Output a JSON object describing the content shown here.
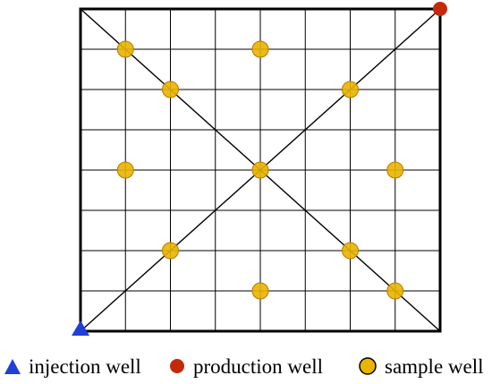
{
  "diagram": {
    "grid_columns": 8,
    "grid_rows": 8,
    "line_color": "#000000",
    "sample_well_color": "#e8b400",
    "sample_well_edge_color": "#b87800",
    "production_well_color": "#c42a0a",
    "injection_well_color": "#1f3fd8",
    "injection_well_icon": "triangle-icon",
    "production_well_icon": "red-circle-icon",
    "sample_well_icon": "yellow-circle-icon",
    "injection_well": {
      "col": 0,
      "row": 8
    },
    "production_well": {
      "col": 8,
      "row": 0
    },
    "sample_wells": [
      {
        "col": 1,
        "row": 1
      },
      {
        "col": 4,
        "row": 1
      },
      {
        "col": 2,
        "row": 2
      },
      {
        "col": 6,
        "row": 2
      },
      {
        "col": 1,
        "row": 4
      },
      {
        "col": 4,
        "row": 4
      },
      {
        "col": 7,
        "row": 4
      },
      {
        "col": 2,
        "row": 6
      },
      {
        "col": 6,
        "row": 6
      },
      {
        "col": 4,
        "row": 7
      },
      {
        "col": 7,
        "row": 7
      }
    ]
  },
  "legend": {
    "injection_well_label": "injection well",
    "production_well_label": "production well",
    "sample_well_label": "sample well"
  }
}
